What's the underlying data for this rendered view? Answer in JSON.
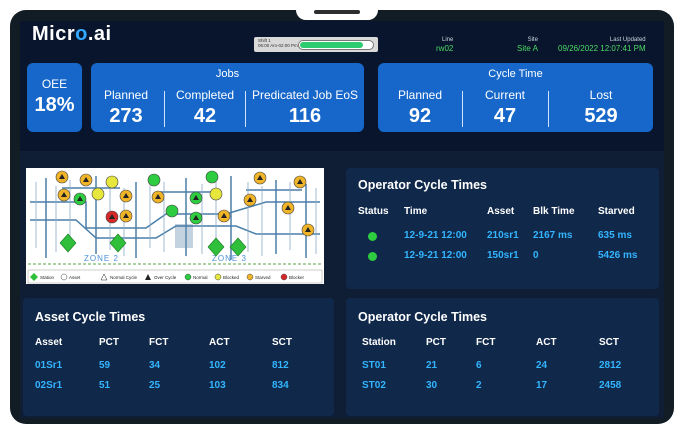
{
  "brand": {
    "name": "Micro.ai",
    "name_left": "Micr",
    "name_dot": "o",
    "name_right": ".ai"
  },
  "header": {
    "shift_label": "Shift 1",
    "shift_time": "06:00 Am-02:00 Pm",
    "shift_progress": 0.88,
    "line_label": "Line",
    "line_value": "rw02",
    "site_label": "Site",
    "site_value": "Site A",
    "updated_label": "Last Updated",
    "updated_value": "09/26/2022 12:07:41 PM"
  },
  "oee": {
    "label": "OEE",
    "value": "18%"
  },
  "jobs": {
    "title": "Jobs",
    "planned_label": "Planned",
    "planned_value": "273",
    "completed_label": "Completed",
    "completed_value": "42",
    "eos_label": "Predicated Job EoS",
    "eos_value": "116"
  },
  "cycle_time": {
    "title": "Cycle Time",
    "planned_label": "Planned",
    "planned_value": "92",
    "current_label": "Current",
    "current_value": "47",
    "lost_label": "Lost",
    "lost_value": "529"
  },
  "map": {
    "zone2": "ZONE 2",
    "zone3": "ZONE 3",
    "legend": [
      "Station",
      "Asset",
      "Normal Cycle",
      "Over Cycle",
      "Normal",
      "Blocked",
      "Starved",
      "Blocker"
    ]
  },
  "operator_top": {
    "title": "Operator Cycle Times",
    "headers": [
      "Status",
      "Time",
      "Asset",
      "Blk Time",
      "Starved"
    ],
    "rows": [
      {
        "status_color": "#2ecc40",
        "time": "12-9-21 12:00",
        "asset": "210sr1",
        "blk": "2167 ms",
        "starved": "635 ms"
      },
      {
        "status_color": "#2ecc40",
        "time": "12-9-21 12:00",
        "asset": "150sr1",
        "blk": "0",
        "starved": "5426 ms"
      }
    ]
  },
  "asset_cycle": {
    "title": "Asset Cycle Times",
    "headers": [
      "Asset",
      "PCT",
      "FCT",
      "ACT",
      "SCT"
    ],
    "rows": [
      [
        "01Sr1",
        "59",
        "34",
        "102",
        "812"
      ],
      [
        "02Sr1",
        "51",
        "25",
        "103",
        "834"
      ]
    ]
  },
  "operator_bottom": {
    "title": "Operator Cycle Times",
    "headers": [
      "Station",
      "PCT",
      "FCT",
      "ACT",
      "SCT"
    ],
    "rows": [
      [
        "ST01",
        "21",
        "6",
        "24",
        "2812"
      ],
      [
        "ST02",
        "30",
        "2",
        "17",
        "2458"
      ]
    ]
  },
  "colors": {
    "accent_blue": "#1667c9",
    "value_blue": "#33b5ff",
    "status_green": "#2ecc40",
    "background": "#0f1e35"
  }
}
